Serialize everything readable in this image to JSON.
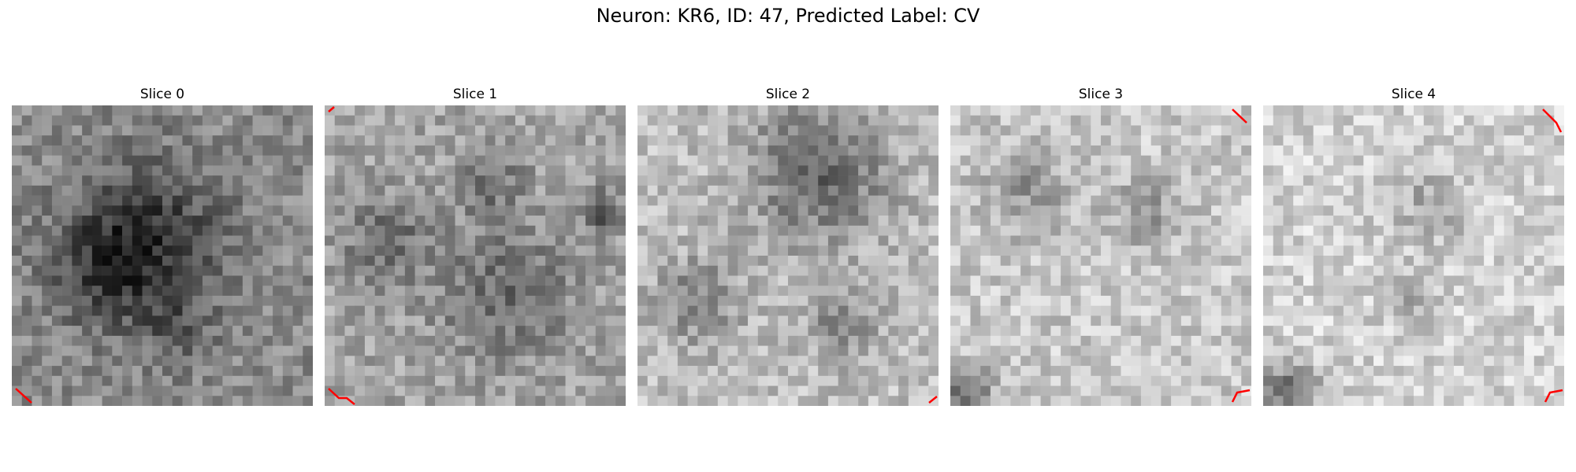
{
  "figure": {
    "title": "Neuron: KR6, ID: 47, Predicted Label: CV"
  },
  "slices": [
    {
      "label": "Slice 0",
      "mean": 140,
      "blobs": [
        [
          0.45,
          0.45,
          0.18,
          -90
        ],
        [
          0.3,
          0.55,
          0.12,
          -50
        ],
        [
          0.55,
          0.75,
          0.08,
          -40
        ]
      ]
    },
    {
      "label": "Slice 1",
      "mean": 165,
      "blobs": [
        [
          0.6,
          0.62,
          0.16,
          -60
        ],
        [
          0.2,
          0.45,
          0.1,
          -60
        ],
        [
          0.55,
          0.25,
          0.08,
          -50
        ],
        [
          0.92,
          0.35,
          0.05,
          -80
        ]
      ]
    },
    {
      "label": "Slice 2",
      "mean": 190,
      "blobs": [
        [
          0.6,
          0.22,
          0.16,
          -90
        ],
        [
          0.2,
          0.65,
          0.1,
          -60
        ],
        [
          0.68,
          0.72,
          0.08,
          -60
        ]
      ]
    },
    {
      "label": "Slice 3",
      "mean": 200,
      "blobs": [
        [
          0.25,
          0.28,
          0.1,
          -50
        ],
        [
          0.65,
          0.35,
          0.08,
          -50
        ],
        [
          0.05,
          0.95,
          0.06,
          -90
        ]
      ]
    },
    {
      "label": "Slice 4",
      "mean": 210,
      "blobs": [
        [
          0.55,
          0.32,
          0.1,
          -40
        ],
        [
          0.5,
          0.65,
          0.06,
          -40
        ],
        [
          0.08,
          0.95,
          0.07,
          -100
        ]
      ]
    }
  ],
  "colors": {
    "annotation": "#ff0000"
  }
}
